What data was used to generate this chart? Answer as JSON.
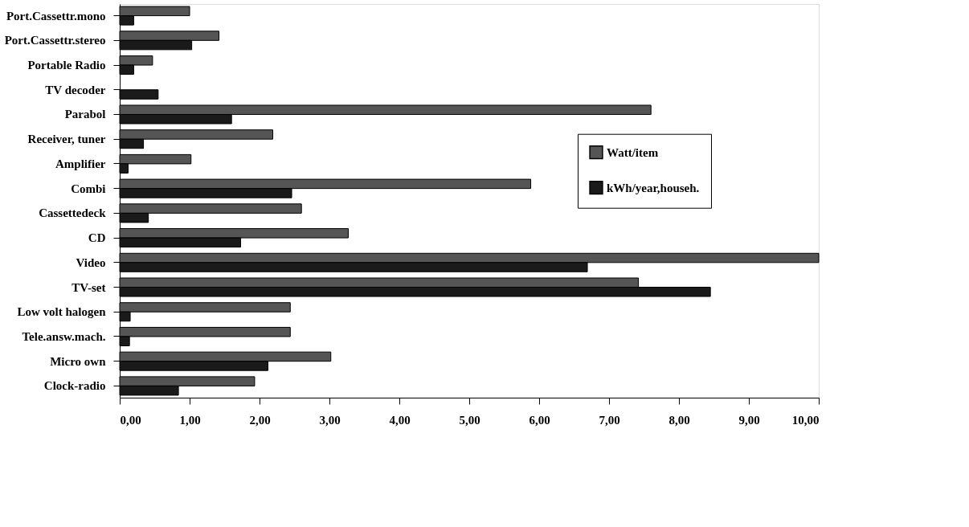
{
  "chart_data": {
    "type": "bar",
    "orientation": "horizontal",
    "categories": [
      "Port.Cassettr.mono",
      "Port.Cassettr.stereo",
      "Portable Radio",
      "TV decoder",
      "Parabol",
      "Receiver, tuner",
      "Amplifier",
      "Combi",
      "Cassettedeck",
      "CD",
      "Video",
      "TV-set",
      "Low volt halogen",
      "Tele.answ.mach.",
      "Micro own",
      "Clock-radio"
    ],
    "series": [
      {
        "name": "Watt/item",
        "color": "#555555",
        "values": [
          1.0,
          1.42,
          0.47,
          null,
          7.6,
          2.19,
          1.02,
          5.88,
          2.6,
          3.27,
          10.0,
          7.42,
          2.44,
          2.44,
          3.02,
          1.93
        ]
      },
      {
        "name": "kWh/year,househ.",
        "color": "#1a1a1a",
        "values": [
          0.2,
          1.03,
          0.2,
          0.55,
          1.6,
          0.34,
          0.12,
          2.46,
          0.41,
          1.73,
          6.69,
          8.45,
          0.15,
          0.14,
          2.12,
          0.84
        ]
      }
    ],
    "xlim": [
      0,
      10
    ],
    "xticks": [
      {
        "value": 0,
        "label": "0,00"
      },
      {
        "value": 1,
        "label": "1,00"
      },
      {
        "value": 2,
        "label": "2,00"
      },
      {
        "value": 3,
        "label": "3,00"
      },
      {
        "value": 4,
        "label": "4,00"
      },
      {
        "value": 5,
        "label": "5,00"
      },
      {
        "value": 6,
        "label": "6,00"
      },
      {
        "value": 7,
        "label": "7,00"
      },
      {
        "value": 8,
        "label": "8,00"
      },
      {
        "value": 9,
        "label": "9,00"
      },
      {
        "value": 10,
        "label": "10,00"
      }
    ],
    "grid": false,
    "legend": "right"
  }
}
